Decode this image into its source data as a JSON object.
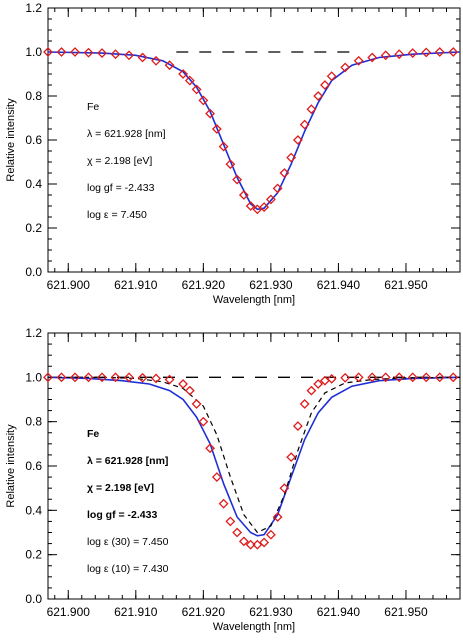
{
  "chart_data": [
    {
      "type": "line",
      "xlabel": "Wavelength [nm]",
      "ylabel": "Relative intensity",
      "xlim": [
        621.897,
        621.958
      ],
      "ylim": [
        0.0,
        1.2
      ],
      "xticks": [
        621.9,
        621.91,
        621.92,
        621.93,
        621.94,
        621.95
      ],
      "xtick_labels": [
        "621.900",
        "621.910",
        "621.920",
        "621.930",
        "621.940",
        "621.950"
      ],
      "yticks": [
        0.0,
        0.2,
        0.4,
        0.6,
        0.8,
        1.0,
        1.2
      ],
      "ytick_labels": [
        "0.0",
        "0.2",
        "0.4",
        "0.6",
        "0.8",
        "1.0",
        "1.2"
      ],
      "annotations": [
        "Fe",
        "λ = 621.928 [nm]",
        "χ =  2.198 [eV]",
        "log gf = -2.433",
        "log ε =  7.450"
      ],
      "series": [
        {
          "style": "dashed-continuum",
          "x": [
            621.916,
            621.943
          ],
          "y": [
            1.0,
            1.0
          ]
        },
        {
          "style": "solid-blue",
          "x": [
            621.897,
            621.905,
            621.91,
            621.914,
            621.917,
            621.919,
            621.921,
            621.923,
            621.925,
            621.927,
            621.928,
            621.929,
            621.931,
            621.933,
            621.935,
            621.937,
            621.939,
            621.942,
            621.946,
            621.951,
            621.958
          ],
          "y": [
            1.0,
            0.995,
            0.985,
            0.96,
            0.91,
            0.84,
            0.73,
            0.58,
            0.43,
            0.31,
            0.285,
            0.29,
            0.36,
            0.49,
            0.64,
            0.77,
            0.87,
            0.94,
            0.975,
            0.99,
            1.0
          ]
        },
        {
          "style": "open-diamond-red",
          "x": [
            621.897,
            621.899,
            621.901,
            621.903,
            621.905,
            621.907,
            621.909,
            621.911,
            621.913,
            621.915,
            621.917,
            621.918,
            621.919,
            621.92,
            621.921,
            621.922,
            621.923,
            621.924,
            621.925,
            621.926,
            621.927,
            621.928,
            621.929,
            621.93,
            621.931,
            621.932,
            621.933,
            621.934,
            621.935,
            621.936,
            621.937,
            621.938,
            621.939,
            621.941,
            621.943,
            621.945,
            621.947,
            621.949,
            621.951,
            621.953,
            621.955,
            621.957
          ],
          "y": [
            1.0,
            1.0,
            1.0,
            0.997,
            0.995,
            0.99,
            0.985,
            0.975,
            0.96,
            0.94,
            0.9,
            0.87,
            0.83,
            0.78,
            0.72,
            0.65,
            0.57,
            0.49,
            0.42,
            0.35,
            0.3,
            0.285,
            0.295,
            0.33,
            0.38,
            0.45,
            0.52,
            0.6,
            0.67,
            0.74,
            0.8,
            0.85,
            0.89,
            0.93,
            0.96,
            0.975,
            0.985,
            0.99,
            0.995,
            0.998,
            1.0,
            1.0
          ]
        }
      ]
    },
    {
      "type": "line",
      "xlabel": "Wavelength [nm]",
      "ylabel": "Relative intensity",
      "xlim": [
        621.897,
        621.958
      ],
      "ylim": [
        0.0,
        1.2
      ],
      "xticks": [
        621.9,
        621.91,
        621.92,
        621.93,
        621.94,
        621.95
      ],
      "xtick_labels": [
        "621.900",
        "621.910",
        "621.920",
        "621.930",
        "621.940",
        "621.950"
      ],
      "yticks": [
        0.0,
        0.2,
        0.4,
        0.6,
        0.8,
        1.0,
        1.2
      ],
      "ytick_labels": [
        "0.0",
        "0.2",
        "0.4",
        "0.6",
        "0.8",
        "1.0",
        "1.2"
      ],
      "annotations": [
        "Fe",
        "λ = 621.928 [nm]",
        "χ =  2.198 [eV]",
        "log gf = -2.433",
        "log ε (30) =   7.450",
        "log ε (10) =   7.430"
      ],
      "series": [
        {
          "style": "dashed-continuum",
          "x": [
            621.897,
            621.958
          ],
          "y": [
            1.0,
            1.0
          ]
        },
        {
          "style": "solid-blue",
          "x": [
            621.897,
            621.903,
            621.908,
            621.912,
            621.915,
            621.917,
            621.919,
            621.921,
            621.923,
            621.925,
            621.927,
            621.928,
            621.929,
            621.931,
            621.933,
            621.935,
            621.937,
            621.939,
            621.942,
            621.946,
            621.951,
            621.958
          ],
          "y": [
            1.0,
            0.995,
            0.985,
            0.97,
            0.94,
            0.9,
            0.82,
            0.7,
            0.52,
            0.37,
            0.3,
            0.285,
            0.29,
            0.38,
            0.55,
            0.72,
            0.84,
            0.91,
            0.96,
            0.985,
            0.995,
            1.0
          ]
        },
        {
          "style": "dashed-fine",
          "x": [
            621.897,
            621.905,
            621.91,
            621.914,
            621.917,
            621.92,
            621.922,
            621.924,
            621.926,
            621.928,
            621.93,
            621.932,
            621.934,
            621.936,
            621.938,
            621.941,
            621.945,
            621.95,
            621.958
          ],
          "y": [
            1.0,
            1.0,
            0.995,
            0.98,
            0.95,
            0.87,
            0.74,
            0.55,
            0.38,
            0.3,
            0.33,
            0.47,
            0.67,
            0.84,
            0.93,
            0.975,
            0.99,
            0.998,
            1.0
          ]
        },
        {
          "style": "open-diamond-red",
          "x": [
            621.897,
            621.899,
            621.901,
            621.903,
            621.905,
            621.907,
            621.909,
            621.911,
            621.913,
            621.915,
            621.917,
            621.918,
            621.919,
            621.92,
            621.921,
            621.922,
            621.923,
            621.924,
            621.925,
            621.926,
            621.927,
            621.928,
            621.929,
            621.93,
            621.931,
            621.932,
            621.933,
            621.934,
            621.935,
            621.936,
            621.937,
            621.938,
            621.939,
            621.941,
            621.943,
            621.945,
            621.947,
            621.949,
            621.951,
            621.953,
            621.955,
            621.957
          ],
          "y": [
            1.0,
            1.0,
            1.0,
            1.0,
            1.0,
            1.0,
            1.0,
            0.998,
            0.995,
            0.99,
            0.97,
            0.94,
            0.88,
            0.8,
            0.68,
            0.55,
            0.43,
            0.35,
            0.3,
            0.26,
            0.245,
            0.245,
            0.255,
            0.29,
            0.37,
            0.5,
            0.64,
            0.78,
            0.88,
            0.94,
            0.97,
            0.985,
            0.993,
            0.998,
            1.0,
            1.0,
            1.0,
            1.0,
            1.0,
            1.0,
            1.0,
            1.0
          ]
        }
      ]
    }
  ]
}
